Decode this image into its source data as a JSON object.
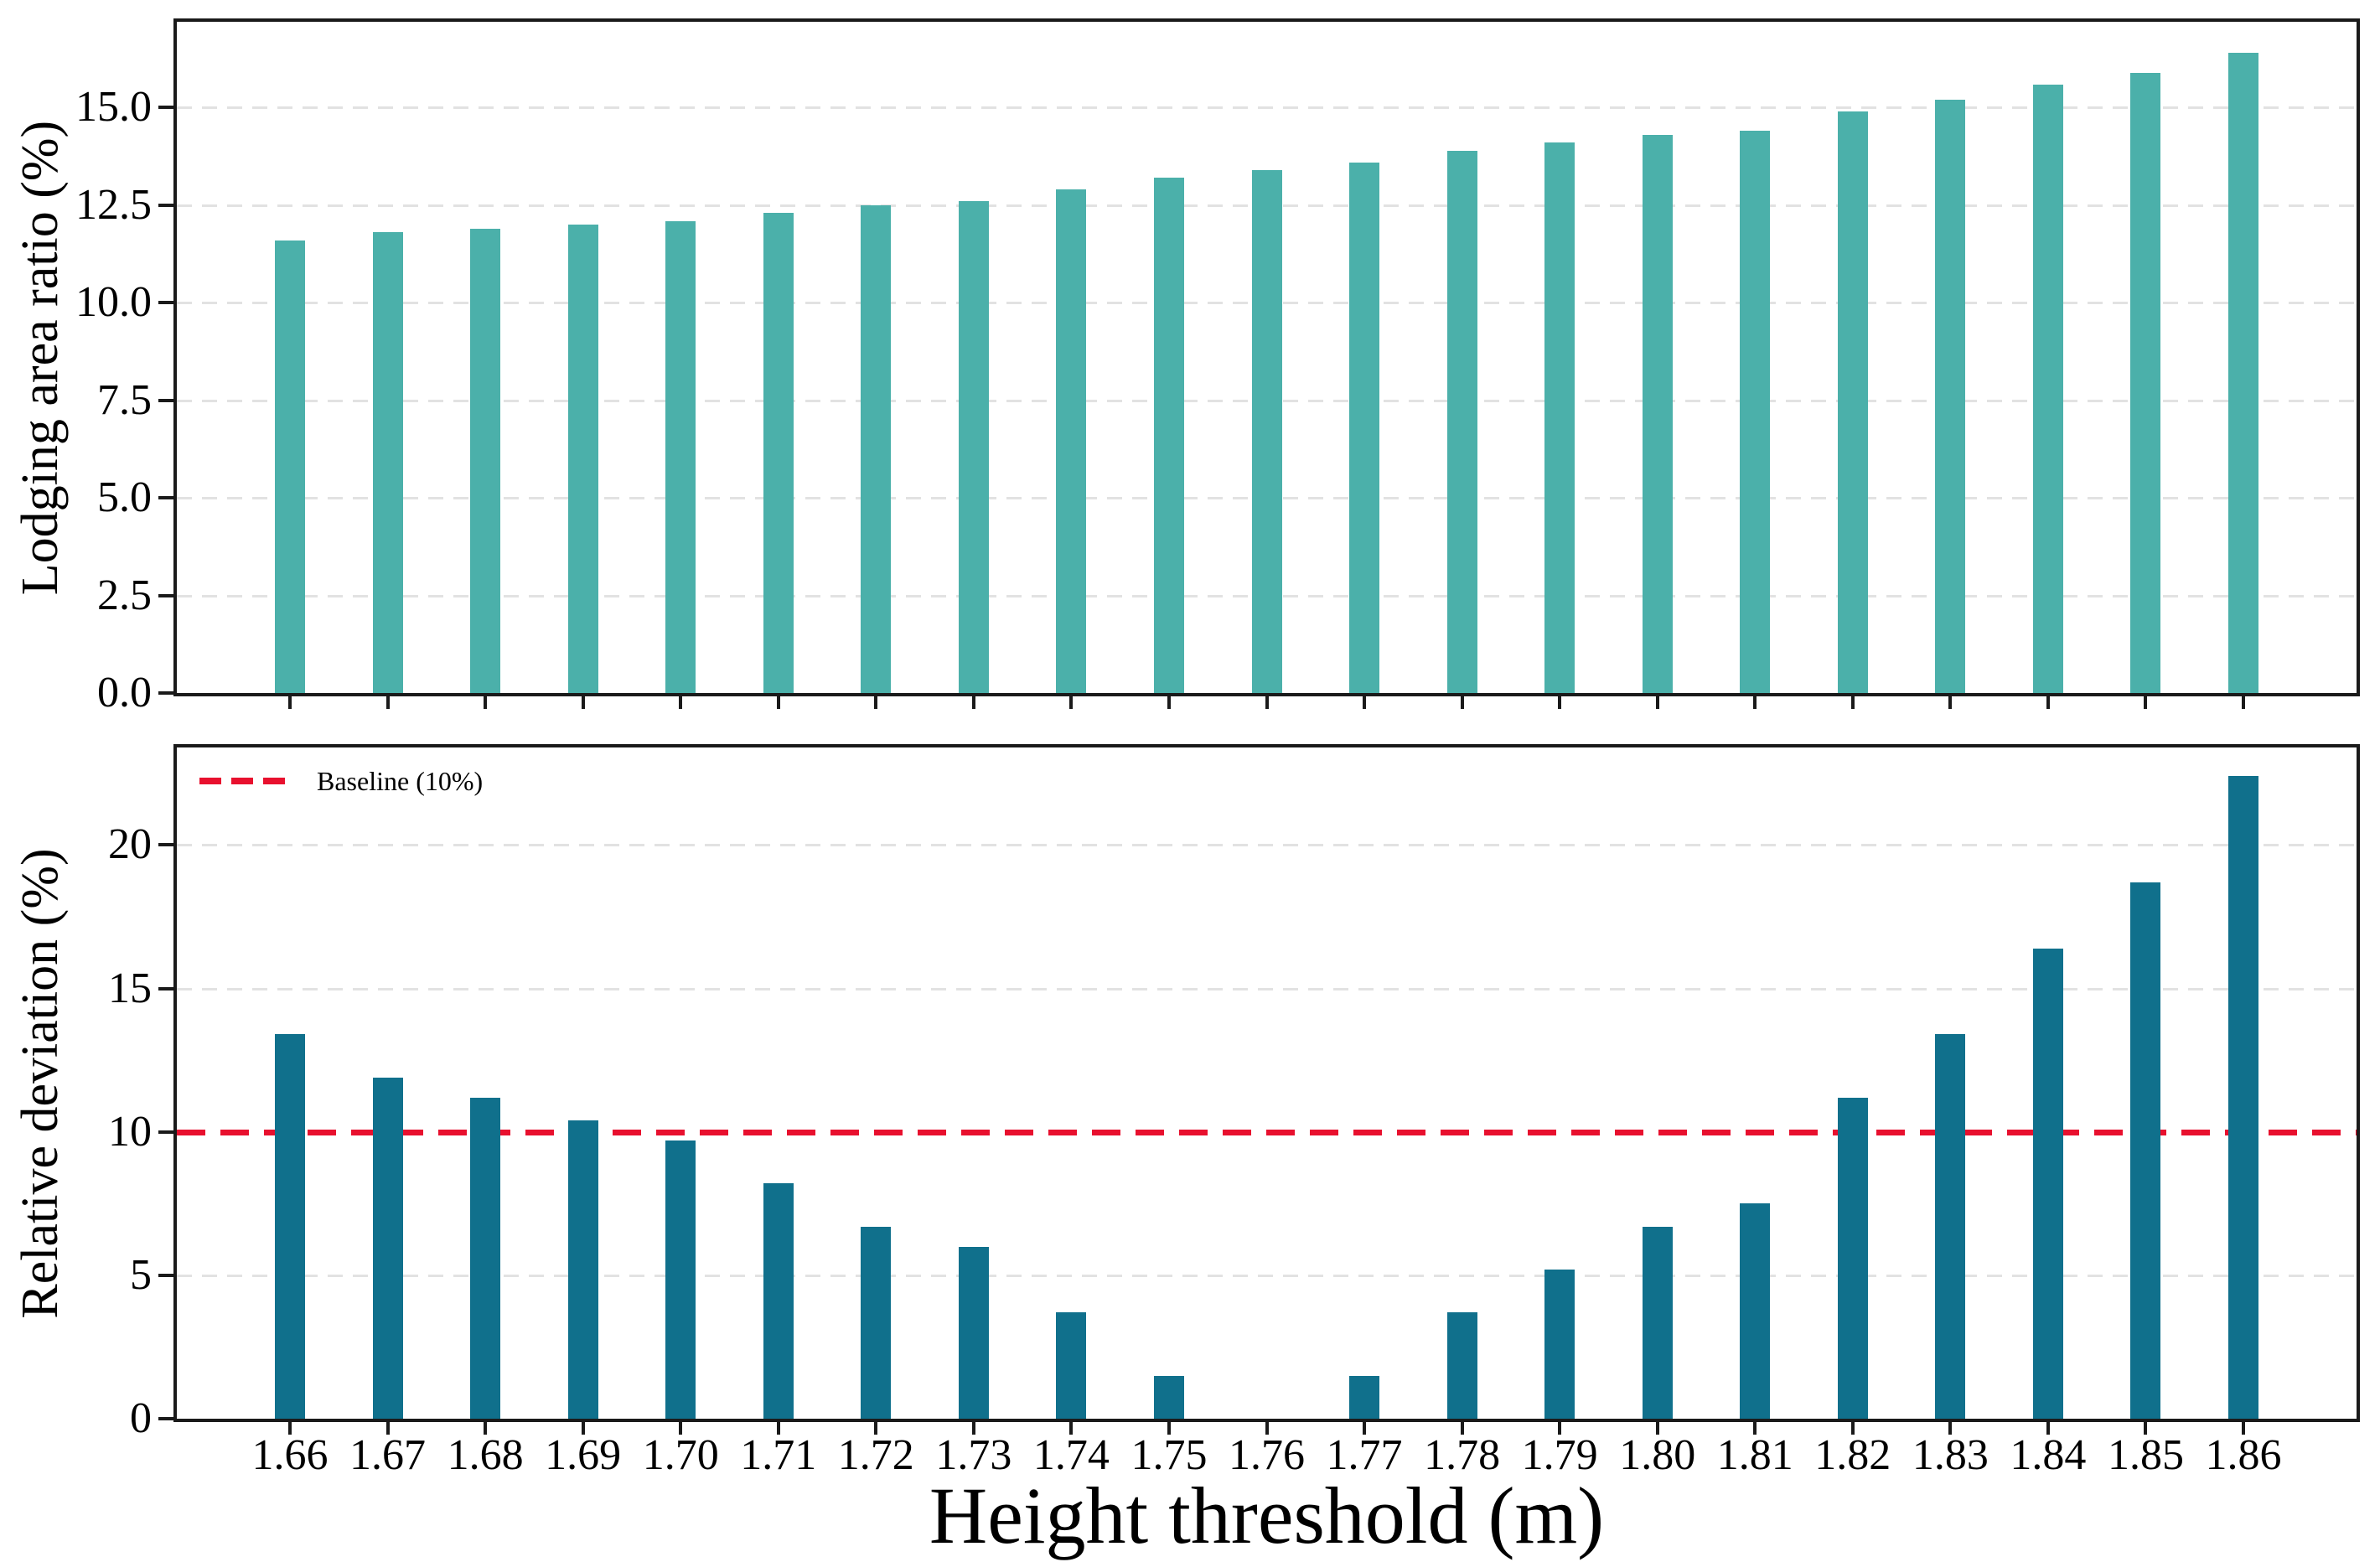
{
  "figure": {
    "background": "#ffffff",
    "axis_color": "#1a1a1a",
    "gridline_color": "#e2e2e2"
  },
  "chart_data": [
    {
      "type": "bar",
      "ylabel": "Lodging area ratio (%)",
      "categories": [
        "1.66",
        "1.67",
        "1.68",
        "1.69",
        "1.70",
        "1.71",
        "1.72",
        "1.73",
        "1.74",
        "1.75",
        "1.76",
        "1.77",
        "1.78",
        "1.79",
        "1.80",
        "1.81",
        "1.82",
        "1.83",
        "1.84",
        "1.85",
        "1.86"
      ],
      "values": [
        11.6,
        11.8,
        11.9,
        12.0,
        12.1,
        12.3,
        12.5,
        12.6,
        12.9,
        13.2,
        13.4,
        13.6,
        13.9,
        14.1,
        14.3,
        14.4,
        14.9,
        15.2,
        15.6,
        15.9,
        16.4
      ],
      "bar_color": "#4bb0aa",
      "ylim": [
        0,
        17.2
      ],
      "yticks": [
        {
          "value": 0,
          "label": "0.0"
        },
        {
          "value": 2.5,
          "label": "2.5"
        },
        {
          "value": 5,
          "label": "5.0"
        },
        {
          "value": 7.5,
          "label": "7.5"
        },
        {
          "value": 10,
          "label": "10.0"
        },
        {
          "value": 12.5,
          "label": "12.5"
        },
        {
          "value": 15,
          "label": "15.0"
        }
      ],
      "grid": true,
      "legend_position": "none",
      "show_x_tick_labels": false
    },
    {
      "type": "bar",
      "ylabel": "Relative deviation (%)",
      "xlabel": "Height threshold (m)",
      "categories": [
        "1.66",
        "1.67",
        "1.68",
        "1.69",
        "1.70",
        "1.71",
        "1.72",
        "1.73",
        "1.74",
        "1.75",
        "1.76",
        "1.77",
        "1.78",
        "1.79",
        "1.80",
        "1.81",
        "1.82",
        "1.83",
        "1.84",
        "1.85",
        "1.86"
      ],
      "values": [
        13.4,
        11.9,
        11.2,
        10.4,
        9.7,
        8.2,
        6.7,
        6.0,
        3.7,
        1.5,
        0.0,
        1.5,
        3.7,
        5.2,
        6.7,
        7.5,
        11.2,
        13.4,
        16.4,
        18.7,
        22.4
      ],
      "bar_color": "#10708c",
      "ylim": [
        0,
        23.4
      ],
      "yticks": [
        {
          "value": 0,
          "label": "0"
        },
        {
          "value": 5,
          "label": "5"
        },
        {
          "value": 10,
          "label": "10"
        },
        {
          "value": 15,
          "label": "15"
        },
        {
          "value": 20,
          "label": "20"
        }
      ],
      "grid": true,
      "baseline": {
        "value": 10,
        "color": "#e8102e",
        "style": "dashed"
      },
      "legend": {
        "position": "upper left",
        "entries": [
          {
            "label": "Baseline (10%)",
            "color": "#e8102e",
            "line_style": "dashed"
          }
        ]
      },
      "show_x_tick_labels": true
    }
  ]
}
